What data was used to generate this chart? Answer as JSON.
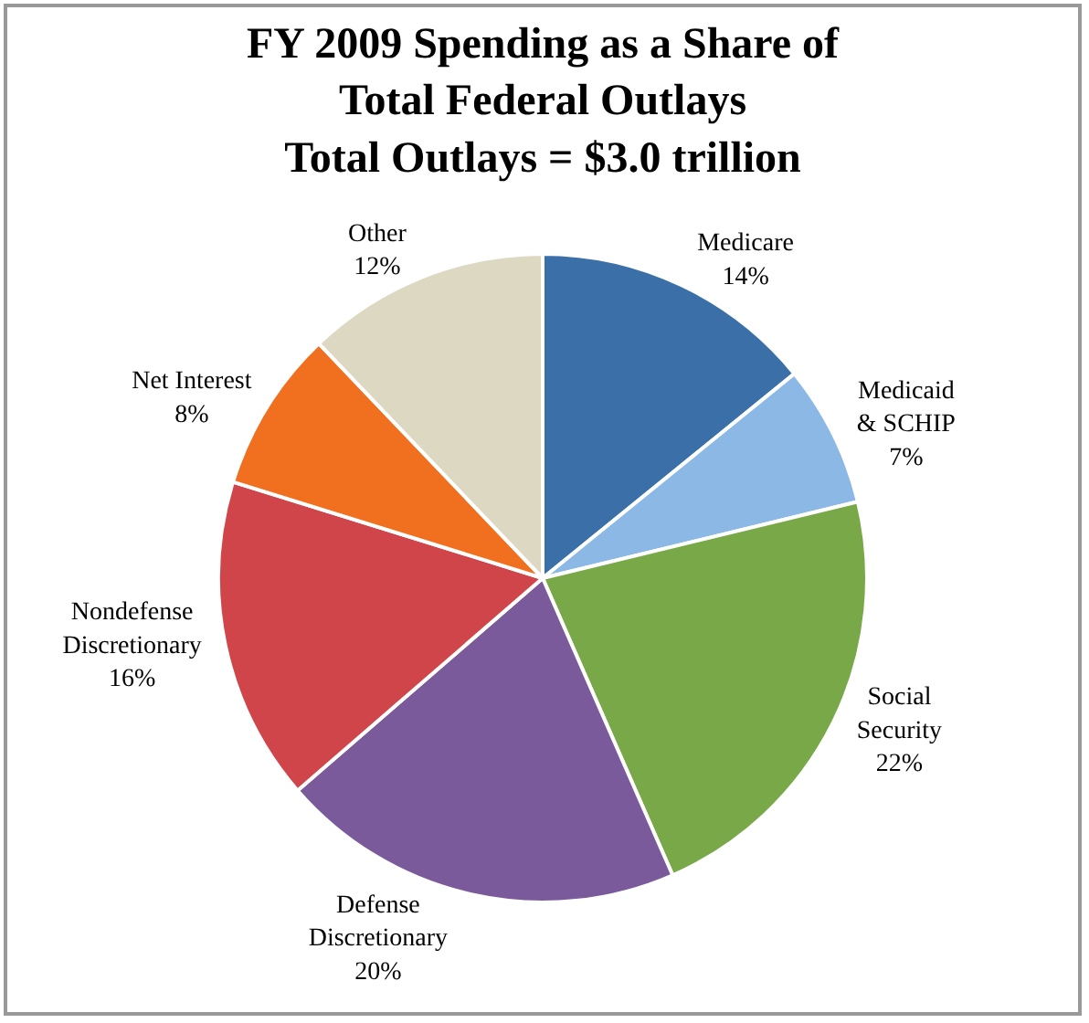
{
  "chart_data": {
    "type": "pie",
    "title": "FY 2009 Spending as a Share of Total Federal Outlays",
    "subtitle": "Total Outlays = $3.0 trillion",
    "categories": [
      "Medicare",
      "Medicaid & SCHIP",
      "Social Security",
      "Defense Discretionary",
      "Nondefense Discretionary",
      "Net Interest",
      "Other"
    ],
    "values": [
      14,
      7,
      22,
      20,
      16,
      8,
      12
    ],
    "value_labels": [
      "14%",
      "7%",
      "22%",
      "20%",
      "16%",
      "8%",
      "12%"
    ],
    "colors": [
      "#3a6fa8",
      "#8cb8e6",
      "#78a848",
      "#7a5a9a",
      "#d0454a",
      "#f07020",
      "#ddd8c2"
    ],
    "legend": false
  }
}
